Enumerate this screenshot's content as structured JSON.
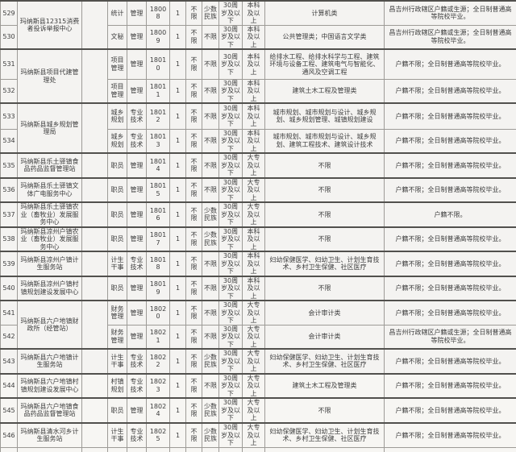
{
  "colors": {
    "paper": "#f9f8f6",
    "grid_line": "#9e9c98",
    "group_line": "#4f4e4b",
    "text": "#3a3a3a"
  },
  "table": {
    "description": "recruitment-position-list-rows-529-546",
    "groups": [
      {
        "org": "玛纳斯县12315消费者投诉举报中心",
        "rows": [
          {
            "no": "529",
            "position": "统计",
            "category": "管理",
            "code": "18008",
            "count": "1",
            "open": "不限",
            "ethnic": "少数民族",
            "age": "30周岁及以下",
            "education": "本科及以上",
            "major": "计算机类",
            "note": "昌吉州行政辖区户籍或生源；全日制普通高等院校毕业。"
          },
          {
            "no": "530",
            "position": "文秘",
            "category": "管理",
            "code": "18009",
            "count": "1",
            "open": "不限",
            "ethnic": "不限",
            "age": "30周岁及以下",
            "education": "本科及以上",
            "major": "公共管理类；中国语言文学类",
            "note": "昌吉州行政辖区户籍或生源；全日制普通高等院校毕业。"
          }
        ]
      },
      {
        "org": "玛纳斯县项目代建管理处",
        "rows": [
          {
            "no": "531",
            "position": "项目管理",
            "category": "管理",
            "code": "18010",
            "count": "1",
            "open": "不限",
            "ethnic": "不限",
            "age": "30周岁及以下",
            "education": "本科及以上",
            "major": "给排水工程、给排水科学与工程、建筑环境与设备工程、建筑电气与智能化、通风及空调工程",
            "note": "户籍不限；全日制普通高等院校毕业。"
          },
          {
            "no": "532",
            "position": "项目管理",
            "category": "管理",
            "code": "18011",
            "count": "1",
            "open": "不限",
            "ethnic": "不限",
            "age": "30周岁及以下",
            "education": "本科及以上",
            "major": "建筑土木工程及管理类",
            "note": "户籍不限；全日制普通高等院校毕业。"
          }
        ]
      },
      {
        "org": "玛纳斯县城乡规划管理局",
        "rows": [
          {
            "no": "533",
            "position": "城乡规划",
            "category": "专业技术",
            "code": "18012",
            "count": "1",
            "open": "不限",
            "ethnic": "不限",
            "age": "30周岁及以下",
            "education": "本科及以上",
            "major": "城市规划、城市规划与设计、城乡规划、城乡规划管理、城镇规划建设",
            "note": "户籍不限；全日制普通高等院校毕业。"
          },
          {
            "no": "534",
            "position": "城乡规划",
            "category": "专业技术",
            "code": "18013",
            "count": "1",
            "open": "不限",
            "ethnic": "不限",
            "age": "30周岁及以下",
            "education": "本科及以上",
            "major": "城市规划、城市规划与设计、城乡规划、建筑工程技术、建筑设计技术",
            "note": "户籍不限；全日制普通高等院校毕业。"
          }
        ]
      },
      {
        "org": "玛纳斯县乐土驿镇食品药品监督管理站",
        "rows": [
          {
            "no": "535",
            "position": "职员",
            "category": "管理",
            "code": "18014",
            "count": "1",
            "open": "不限",
            "ethnic": "不限",
            "age": "30周岁及以下",
            "education": "大专及以上",
            "major": "不限",
            "note": "户籍不限；全日制普通高等院校毕业。"
          }
        ]
      },
      {
        "org": "玛纳斯县乐土驿镇文体广电服务中心",
        "rows": [
          {
            "no": "536",
            "position": "职员",
            "category": "管理",
            "code": "18015",
            "count": "1",
            "open": "不限",
            "ethnic": "不限",
            "age": "30周岁及以下",
            "education": "大专及以上",
            "major": "不限",
            "note": "户籍不限；全日制普通高等院校毕业。"
          }
        ]
      },
      {
        "org": "玛纳斯县乐土驿镇农业（畜牧业）发展服务中心",
        "rows": [
          {
            "no": "537",
            "position": "职员",
            "category": "管理",
            "code": "18016",
            "count": "1",
            "open": "不限",
            "ethnic": "少数民族",
            "age": "30周岁及以下",
            "education": "大专及以上",
            "major": "不限",
            "note": "户籍不限。"
          }
        ]
      },
      {
        "org": "玛纳斯县凉州户镇农业（畜牧业）发展服务中心",
        "rows": [
          {
            "no": "538",
            "position": "职员",
            "category": "管理",
            "code": "18017",
            "count": "1",
            "open": "不限",
            "ethnic": "少数民族",
            "age": "30周岁及以下",
            "education": "本科及以上",
            "major": "不限",
            "note": "户籍不限；全日制普通高等院校毕业。"
          }
        ]
      },
      {
        "org": "玛纳斯县凉州户镇计生服务站",
        "rows": [
          {
            "no": "539",
            "position": "计生干事",
            "category": "专业技术",
            "code": "18018",
            "count": "1",
            "open": "不限",
            "ethnic": "不限",
            "age": "30周岁及以下",
            "education": "本科及以上",
            "major": "妇幼保健医学、妇幼卫生、计划生育技术、乡村卫生保健、社区医疗",
            "note": "户籍不限；全日制普通高等院校毕业。"
          }
        ]
      },
      {
        "org": "玛纳斯县凉州户镇村镇规划建设发展中心",
        "rows": [
          {
            "no": "540",
            "position": "职员",
            "category": "管理",
            "code": "18019",
            "count": "1",
            "open": "不限",
            "ethnic": "不限",
            "age": "30周岁及以下",
            "education": "本科及以上",
            "major": "不限",
            "note": "户籍不限；全日制普通高等院校毕业。"
          }
        ]
      },
      {
        "org": "玛纳斯县六户地镇财政所（经管站）",
        "rows": [
          {
            "no": "541",
            "position": "财务管理",
            "category": "管理",
            "code": "18020",
            "count": "1",
            "open": "不限",
            "ethnic": "不限",
            "age": "30周岁及以下",
            "education": "大专及以上",
            "major": "会计审计类",
            "note": "户籍不限；全日制普通高等院校毕业。"
          },
          {
            "no": "542",
            "position": "财务管理",
            "category": "管理",
            "code": "18021",
            "count": "1",
            "open": "不限",
            "ethnic": "不限",
            "age": "30周岁及以下",
            "education": "大专及以上",
            "major": "会计审计类",
            "note": "昌吉州行政辖区户籍或生源；全日制普通高等院校毕业。"
          }
        ]
      },
      {
        "org": "玛纳斯县六户地镇计生服务站",
        "rows": [
          {
            "no": "543",
            "position": "计生干事",
            "category": "专业技术",
            "code": "18022",
            "count": "1",
            "open": "不限",
            "ethnic": "少数民族",
            "age": "30周岁及以下",
            "education": "大专及以上",
            "major": "妇幼保健医学、妇幼卫生、计划生育技术、乡村卫生保健、社区医疗",
            "note": "户籍不限；全日制普通高等院校毕业。"
          }
        ]
      },
      {
        "org": "玛纳斯县六户地镇村镇规划建设发展中心",
        "rows": [
          {
            "no": "544",
            "position": "村镇规划",
            "category": "专业技术",
            "code": "18023",
            "count": "1",
            "open": "不限",
            "ethnic": "不限",
            "age": "30周岁及以下",
            "education": "大专及以上",
            "major": "建筑土木工程及管理类",
            "note": "户籍不限；全日制普通高等院校毕业。"
          }
        ]
      },
      {
        "org": "玛纳斯县六户地镇食品药品监督管理站",
        "rows": [
          {
            "no": "545",
            "position": "职员",
            "category": "管理",
            "code": "18024",
            "count": "1",
            "open": "不限",
            "ethnic": "少数民族",
            "age": "30周岁及以下",
            "education": "大专及以上",
            "major": "不限",
            "note": "户籍不限；全日制普通高等院校毕业。"
          }
        ]
      },
      {
        "org": "玛纳斯县清水河乡计生服务站",
        "rows": [
          {
            "no": "546",
            "position": "计生干事",
            "category": "专业技术",
            "code": "18025",
            "count": "1",
            "open": "不限",
            "ethnic": "少数民族",
            "age": "30周岁及以下",
            "education": "大专及以上",
            "major": "妇幼保健医学、妇幼卫生、计划生育技术、乡村卫生保健、社区医疗",
            "note": "户籍不限；全日制普通高等院校毕业。"
          }
        ]
      }
    ]
  }
}
